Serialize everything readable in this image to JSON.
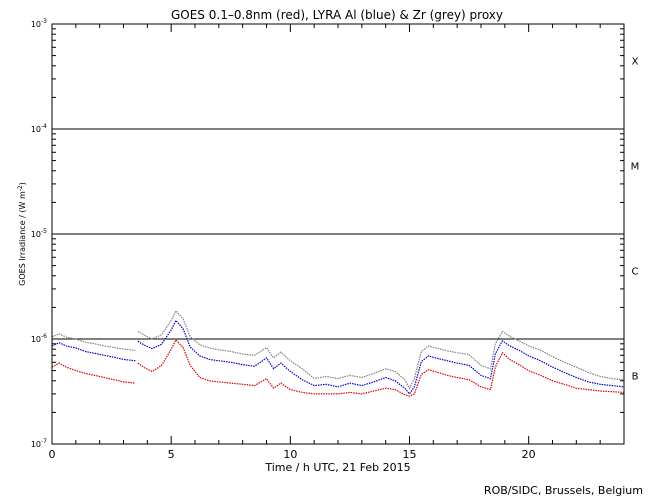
{
  "chart_data": {
    "type": "line",
    "title": "GOES 0.1–0.8nm (red), LYRA Al (blue) & Zr (grey) proxy",
    "xlabel": "Time / h UTC, 21 Feb 2015",
    "ylabel_main": "GOES Irradiance / (W m",
    "ylabel_exp": "-2",
    "ylabel_end": ")",
    "credit": "ROB/SIDC, Brussels, Belgium",
    "xlim": [
      0,
      24
    ],
    "ylim": [
      1e-07,
      0.001
    ],
    "yscale": "log",
    "x_ticks": [
      0,
      5,
      10,
      15,
      20
    ],
    "y_tick_labels": [
      {
        "base": "10",
        "exp": "-7",
        "value": 1e-07
      },
      {
        "base": "10",
        "exp": "-6",
        "value": 1e-06
      },
      {
        "base": "10",
        "exp": "-5",
        "value": 1e-05
      },
      {
        "base": "10",
        "exp": "-4",
        "value": 0.0001
      },
      {
        "base": "10",
        "exp": "-3",
        "value": 0.001
      }
    ],
    "flare_class_lines": [
      1e-06,
      1e-05,
      0.0001
    ],
    "flare_classes": [
      {
        "label": "B",
        "value": 4.5e-07
      },
      {
        "label": "C",
        "value": 4.5e-06
      },
      {
        "label": "M",
        "value": 4.5e-05
      },
      {
        "label": "X",
        "value": 0.00045
      }
    ],
    "series": [
      {
        "color": "#808080",
        "x": [
          0.0,
          0.3,
          0.6,
          1.0,
          1.4,
          1.8,
          2.2,
          2.6,
          3.0,
          3.5,
          3.6,
          3.9,
          4.2,
          4.6,
          5.0,
          5.2,
          5.5,
          5.8,
          6.2,
          6.6,
          7.0,
          7.5,
          8.0,
          8.5,
          9.0,
          9.3,
          9.6,
          10.0,
          10.5,
          11.0,
          11.5,
          12.0,
          12.5,
          13.0,
          13.5,
          14.0,
          14.4,
          14.8,
          15.0,
          15.2,
          15.5,
          15.8,
          16.2,
          16.6,
          17.0,
          17.5,
          18.0,
          18.4,
          18.6,
          18.9,
          19.2,
          19.6,
          20.0,
          20.5,
          21.0,
          21.5,
          22.0,
          22.5,
          23.0,
          23.5,
          24.0
        ],
        "values": [
          1.05e-06,
          1.12e-06,
          1.04e-06,
          1e-06,
          9.3e-07,
          9e-07,
          8.6e-07,
          8.3e-07,
          8e-07,
          7.8e-07,
          1.18e-06,
          1.08e-06,
          1e-06,
          1.1e-06,
          1.5e-06,
          1.85e-06,
          1.55e-06,
          1.05e-06,
          8.8e-07,
          8.2e-07,
          7.9e-07,
          7.6e-07,
          7.2e-07,
          7e-07,
          8.3e-07,
          6.6e-07,
          7.5e-07,
          6.2e-07,
          5.2e-07,
          4.2e-07,
          4.4e-07,
          4.2e-07,
          4.5e-07,
          4.3e-07,
          4.7e-07,
          5.2e-07,
          4.9e-07,
          4.1e-07,
          3.4e-07,
          4.2e-07,
          7.6e-07,
          8.6e-07,
          8.1e-07,
          7.7e-07,
          7.4e-07,
          7.1e-07,
          5.6e-07,
          5.2e-07,
          9e-07,
          1.18e-06,
          1.06e-06,
          9.6e-07,
          8.6e-07,
          7.8e-07,
          6.8e-07,
          6e-07,
          5.4e-07,
          4.8e-07,
          4.4e-07,
          4.2e-07,
          4.1e-07
        ]
      },
      {
        "color": "#0000cc",
        "x": [
          0.0,
          0.3,
          0.6,
          1.0,
          1.4,
          1.8,
          2.2,
          2.6,
          3.0,
          3.5,
          3.6,
          3.9,
          4.2,
          4.6,
          5.0,
          5.2,
          5.5,
          5.8,
          6.2,
          6.6,
          7.0,
          7.5,
          8.0,
          8.5,
          9.0,
          9.3,
          9.6,
          10.0,
          10.5,
          11.0,
          11.5,
          12.0,
          12.5,
          13.0,
          13.5,
          14.0,
          14.4,
          14.8,
          15.0,
          15.2,
          15.5,
          15.8,
          16.2,
          16.6,
          17.0,
          17.5,
          18.0,
          18.4,
          18.6,
          18.9,
          19.2,
          19.6,
          20.0,
          20.5,
          21.0,
          21.5,
          22.0,
          22.5,
          23.0,
          23.5,
          24.0
        ],
        "values": [
          8.6e-07,
          9.2e-07,
          8.6e-07,
          8.2e-07,
          7.6e-07,
          7.3e-07,
          7e-07,
          6.7e-07,
          6.4e-07,
          6.2e-07,
          9.5e-07,
          8.7e-07,
          8.1e-07,
          8.9e-07,
          1.22e-06,
          1.5e-06,
          1.25e-06,
          8.4e-07,
          6.9e-07,
          6.4e-07,
          6.2e-07,
          6e-07,
          5.7e-07,
          5.5e-07,
          6.6e-07,
          5.2e-07,
          5.9e-07,
          4.9e-07,
          4.1e-07,
          3.6e-07,
          3.7e-07,
          3.5e-07,
          3.8e-07,
          3.6e-07,
          3.9e-07,
          4.3e-07,
          4e-07,
          3.4e-07,
          3e-07,
          3.5e-07,
          6.1e-07,
          6.9e-07,
          6.5e-07,
          6.2e-07,
          5.9e-07,
          5.6e-07,
          4.5e-07,
          4.2e-07,
          7.2e-07,
          9.6e-07,
          8.6e-07,
          7.8e-07,
          6.9e-07,
          6.2e-07,
          5.4e-07,
          4.8e-07,
          4.3e-07,
          3.9e-07,
          3.7e-07,
          3.6e-07,
          3.5e-07
        ]
      },
      {
        "color": "#dd0000",
        "x": [
          0.0,
          0.3,
          0.6,
          1.0,
          1.4,
          1.8,
          2.2,
          2.6,
          3.0,
          3.5,
          3.6,
          3.9,
          4.2,
          4.6,
          5.0,
          5.2,
          5.5,
          5.8,
          6.2,
          6.6,
          7.0,
          7.5,
          8.0,
          8.5,
          9.0,
          9.3,
          9.6,
          10.0,
          10.5,
          11.0,
          11.5,
          12.0,
          12.5,
          13.0,
          13.5,
          14.0,
          14.4,
          14.8,
          15.0,
          15.2,
          15.5,
          15.8,
          16.2,
          16.6,
          17.0,
          17.5,
          18.0,
          18.4,
          18.6,
          18.9,
          19.2,
          19.6,
          20.0,
          20.5,
          21.0,
          21.5,
          22.0,
          22.5,
          23.0,
          23.5,
          24.0
        ],
        "values": [
          5.4e-07,
          5.9e-07,
          5.4e-07,
          5e-07,
          4.7e-07,
          4.5e-07,
          4.3e-07,
          4.1e-07,
          3.9e-07,
          3.8e-07,
          5.9e-07,
          5.3e-07,
          4.9e-07,
          5.6e-07,
          8e-07,
          9.8e-07,
          8.3e-07,
          5.6e-07,
          4.3e-07,
          4e-07,
          3.9e-07,
          3.8e-07,
          3.7e-07,
          3.6e-07,
          4.2e-07,
          3.4e-07,
          3.8e-07,
          3.3e-07,
          3.1e-07,
          3e-07,
          3e-07,
          3e-07,
          3.1e-07,
          3e-07,
          3.2e-07,
          3.4e-07,
          3.3e-07,
          2.95e-07,
          2.85e-07,
          3e-07,
          4.6e-07,
          5.1e-07,
          4.8e-07,
          4.5e-07,
          4.3e-07,
          4.1e-07,
          3.5e-07,
          3.3e-07,
          5.4e-07,
          7.4e-07,
          6.4e-07,
          5.7e-07,
          5e-07,
          4.5e-07,
          4e-07,
          3.7e-07,
          3.4e-07,
          3.3e-07,
          3.2e-07,
          3.15e-07,
          3.1e-07
        ]
      }
    ]
  }
}
